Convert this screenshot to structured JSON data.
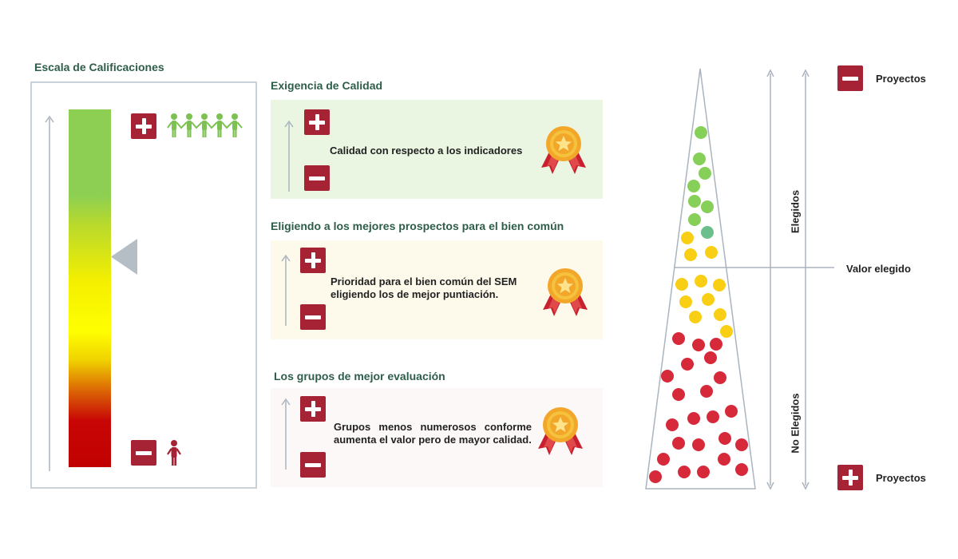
{
  "scale": {
    "title": "Escala de Calificaciones"
  },
  "cards": [
    {
      "title": "Exigencia de Calidad",
      "text": "Calidad con respecto a los indicadores",
      "bg": "#eaf6e2"
    },
    {
      "title": "Eligiendo a los mejores prospectos para el bien común",
      "text": "Prioridad para el bien común del SEM eligiendo los de mejor puntiación.",
      "bg": "#fefaeb"
    },
    {
      "title": "Los grupos de mejor evaluación",
      "text": "Grupos menos numerosos conforme aumenta el valor pero de mayor calidad.",
      "bg": "#fdf8f8"
    }
  ],
  "funnel": {
    "elegidos": "Elegidos",
    "no_elegidos": "No Elegidos",
    "valor_elegido": "Valor elegido",
    "proyectos_minus": "Proyectos",
    "proyectos_plus": "Proyectos"
  },
  "colors": {
    "accent": "#a52335",
    "title_green": "#2e5e4a",
    "people_green": "#7cc152",
    "person_red": "#a52335",
    "dot_green": "#86cf59",
    "dot_teal": "#6bbf8a",
    "dot_yellow": "#f9cf16",
    "dot_red": "#d62a3b"
  },
  "icons": [
    "plus-icon",
    "minus-icon",
    "people-group-icon",
    "person-icon",
    "medal-icon",
    "arrow-up-icon",
    "pointer-triangle-icon"
  ]
}
